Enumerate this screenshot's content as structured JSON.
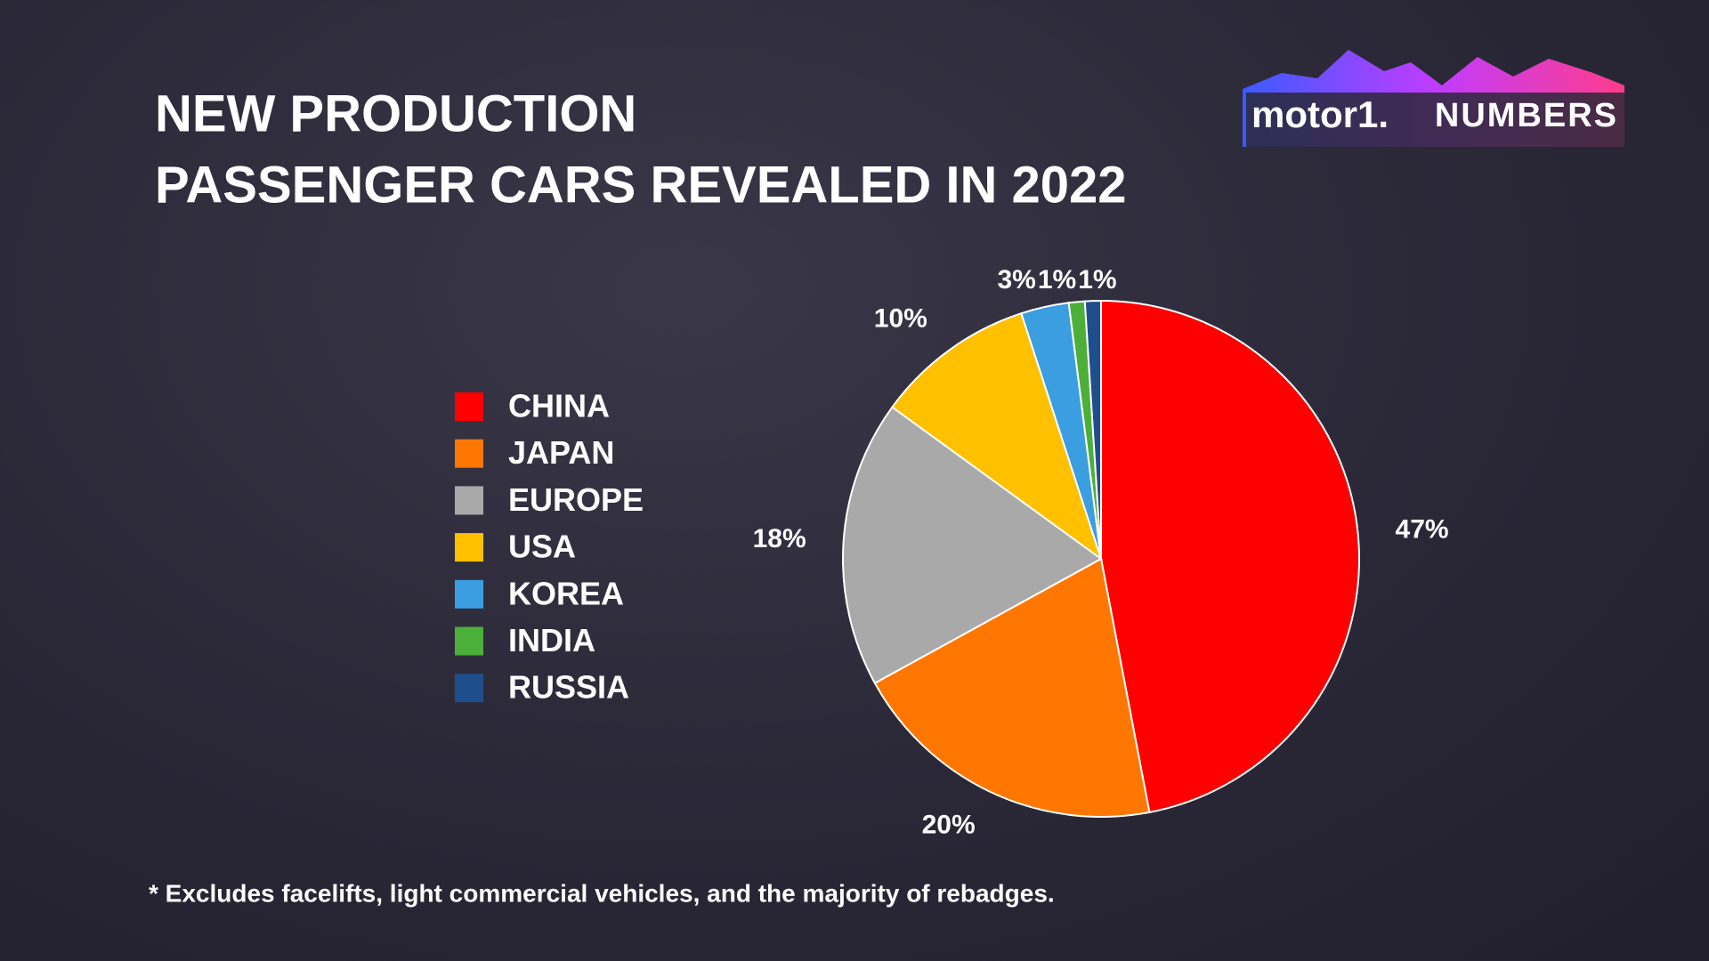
{
  "chart_data": {
    "type": "pie",
    "title": [
      "NEW PRODUCTION",
      "PASSENGER CARS REVEALED IN 2022"
    ],
    "categories": [
      "CHINA",
      "JAPAN",
      "EUROPE",
      "USA",
      "KOREA",
      "INDIA",
      "RUSSIA"
    ],
    "values": [
      47,
      20,
      18,
      10,
      3,
      1,
      1
    ],
    "value_labels": [
      "47%",
      "20%",
      "18%",
      "10%",
      "3%",
      "1%",
      "1%"
    ],
    "colors": [
      "#ff0000",
      "#ff7700",
      "#a9a9a9",
      "#ffc000",
      "#3b9ee0",
      "#4caf3a",
      "#1f4e8c"
    ],
    "legend": "left",
    "note": "* Excludes facelifts, light commercial vehicles, and the majority of rebadges."
  },
  "logo": {
    "brand": "motor1.",
    "label": "NUMBERS"
  }
}
